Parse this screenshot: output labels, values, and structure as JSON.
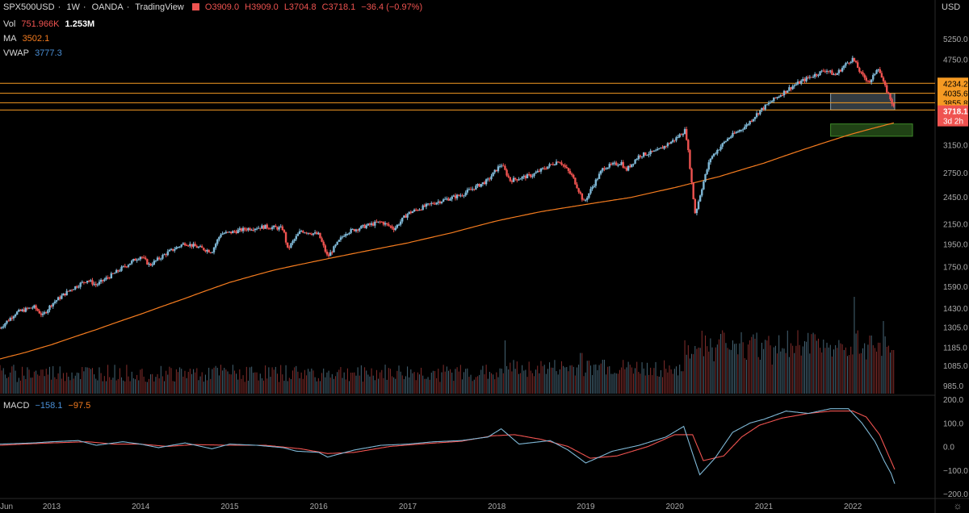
{
  "header": {
    "symbol": "SPX500USD",
    "interval": "1W",
    "exchange": "OANDA",
    "platform": "TradingView",
    "open": "O3909.0",
    "high": "H3909.0",
    "low": "L3704.8",
    "close": "C3718.1",
    "change": "−36.4 (−0.97%)",
    "currency": "USD"
  },
  "indicators": {
    "vol_label": "Vol",
    "vol_value": "751.966K",
    "vol_value2": "1.253M",
    "ma_label": "MA",
    "ma_value": "3502.1",
    "vwap_label": "VWAP",
    "vwap_value": "3777.3",
    "macd_label": "MACD",
    "macd_value": "−158.1",
    "signal_value": "−97.5"
  },
  "colors": {
    "background": "#000000",
    "up_candle": "#7fb8d6",
    "down_candle": "#ef5350",
    "ma_line": "#f57c1f",
    "level_line": "#f59a23",
    "macd_line": "#7fb8d6",
    "signal_line": "#ef5350",
    "zone_gray": "#5b6b78",
    "zone_green": "#2e5e1e"
  },
  "chart_data": {
    "type": "candlestick",
    "price_axis_labels": [
      "5250.0",
      "4750.0",
      "3150.0",
      "2750.0",
      "2450.0",
      "2150.0",
      "1950.0",
      "1750.0",
      "1590.0",
      "1430.0",
      "1305.0",
      "1185.0",
      "1085.0",
      "985.0"
    ],
    "price_axis_values": [
      5250,
      4750,
      3150,
      2750,
      2450,
      2150,
      1950,
      1750,
      1590,
      1430,
      1305,
      1185,
      1085,
      985
    ],
    "price_range": [
      1290,
      5100
    ],
    "scale": "log",
    "macd_axis_labels": [
      "200.0",
      "100.0",
      "0.0",
      "−100.0",
      "−200.0"
    ],
    "macd_axis_values": [
      200,
      100,
      0,
      -100,
      -200
    ],
    "time_labels": [
      "Jun",
      "2013",
      "2014",
      "2015",
      "2016",
      "2017",
      "2018",
      "2019",
      "2020",
      "2021",
      "2022"
    ],
    "time_positions": [
      2012.42,
      2013,
      2014,
      2015,
      2016,
      2017,
      2018,
      2019,
      2020,
      2021,
      2022
    ],
    "time_range": [
      2012.42,
      2022.47
    ],
    "price_path": [
      [
        2012.42,
        1300
      ],
      [
        2012.6,
        1400
      ],
      [
        2012.8,
        1440
      ],
      [
        2012.9,
        1380
      ],
      [
        2013.0,
        1460
      ],
      [
        2013.2,
        1560
      ],
      [
        2013.4,
        1640
      ],
      [
        2013.5,
        1600
      ],
      [
        2013.7,
        1690
      ],
      [
        2013.9,
        1790
      ],
      [
        2014.0,
        1840
      ],
      [
        2014.1,
        1760
      ],
      [
        2014.3,
        1870
      ],
      [
        2014.5,
        1960
      ],
      [
        2014.6,
        1930
      ],
      [
        2014.8,
        1880
      ],
      [
        2014.9,
        2050
      ],
      [
        2015.0,
        2060
      ],
      [
        2015.2,
        2100
      ],
      [
        2015.4,
        2120
      ],
      [
        2015.6,
        2100
      ],
      [
        2015.65,
        1900
      ],
      [
        2015.8,
        2080
      ],
      [
        2016.0,
        2040
      ],
      [
        2016.1,
        1830
      ],
      [
        2016.3,
        2060
      ],
      [
        2016.5,
        2120
      ],
      [
        2016.7,
        2170
      ],
      [
        2016.85,
        2100
      ],
      [
        2017.0,
        2260
      ],
      [
        2017.3,
        2380
      ],
      [
        2017.6,
        2470
      ],
      [
        2017.9,
        2650
      ],
      [
        2018.05,
        2870
      ],
      [
        2018.15,
        2650
      ],
      [
        2018.4,
        2720
      ],
      [
        2018.7,
        2920
      ],
      [
        2018.85,
        2700
      ],
      [
        2018.98,
        2380
      ],
      [
        2019.2,
        2820
      ],
      [
        2019.4,
        2890
      ],
      [
        2019.45,
        2780
      ],
      [
        2019.6,
        2990
      ],
      [
        2019.8,
        3050
      ],
      [
        2020.0,
        3230
      ],
      [
        2020.12,
        3380
      ],
      [
        2020.2,
        2500
      ],
      [
        2020.23,
        2250
      ],
      [
        2020.4,
        2950
      ],
      [
        2020.6,
        3250
      ],
      [
        2020.8,
        3450
      ],
      [
        2020.95,
        3700
      ],
      [
        2021.1,
        3900
      ],
      [
        2021.3,
        4150
      ],
      [
        2021.5,
        4350
      ],
      [
        2021.7,
        4520
      ],
      [
        2021.8,
        4400
      ],
      [
        2021.95,
        4700
      ],
      [
        2022.0,
        4770
      ],
      [
        2022.1,
        4400
      ],
      [
        2022.2,
        4250
      ],
      [
        2022.28,
        4600
      ],
      [
        2022.35,
        4200
      ],
      [
        2022.43,
        3900
      ],
      [
        2022.47,
        3718
      ]
    ],
    "ma_path": [
      [
        2012.42,
        1120
      ],
      [
        2012.7,
        1155
      ],
      [
        2013.0,
        1200
      ],
      [
        2013.5,
        1290
      ],
      [
        2014.0,
        1390
      ],
      [
        2014.5,
        1500
      ],
      [
        2015.0,
        1620
      ],
      [
        2015.5,
        1720
      ],
      [
        2016.0,
        1800
      ],
      [
        2016.5,
        1880
      ],
      [
        2017.0,
        1960
      ],
      [
        2017.5,
        2060
      ],
      [
        2018.0,
        2180
      ],
      [
        2018.5,
        2280
      ],
      [
        2019.0,
        2360
      ],
      [
        2019.5,
        2440
      ],
      [
        2020.0,
        2560
      ],
      [
        2020.5,
        2700
      ],
      [
        2021.0,
        2880
      ],
      [
        2021.5,
        3100
      ],
      [
        2022.0,
        3320
      ],
      [
        2022.47,
        3502
      ]
    ],
    "levels": [
      {
        "label": "4234.2",
        "value": 4234.2
      },
      {
        "label": "4035.6",
        "value": 4035.6
      },
      {
        "label": "3855.8",
        "value": 3855.8
      },
      {
        "label": "3722.6",
        "value": 3722.6
      }
    ],
    "last_price": {
      "label": "3718.1",
      "countdown": "3d 2h",
      "value": 3718.1
    },
    "zones": [
      {
        "type": "gray",
        "x": [
          2021.75,
          2022.47
        ],
        "y": [
          3722.6,
          4035.6
        ]
      },
      {
        "type": "green",
        "x": [
          2021.75,
          2022.67
        ],
        "y": [
          3280,
          3480
        ]
      }
    ],
    "volume_spikes": [
      [
        2018.1,
        0.55
      ],
      [
        2018.95,
        0.42
      ],
      [
        2019.2,
        0.35
      ],
      [
        2020.15,
        0.5
      ],
      [
        2020.65,
        0.55
      ],
      [
        2020.8,
        0.35
      ],
      [
        2021.1,
        0.3
      ],
      [
        2021.9,
        0.45
      ],
      [
        2022.02,
        1.0
      ],
      [
        2022.2,
        0.6
      ],
      [
        2022.35,
        0.75
      ],
      [
        2022.45,
        0.45
      ]
    ],
    "macd_path": [
      [
        2012.42,
        10
      ],
      [
        2012.8,
        15
      ],
      [
        2013.0,
        20
      ],
      [
        2013.3,
        25
      ],
      [
        2013.5,
        5
      ],
      [
        2013.8,
        20
      ],
      [
        2014.0,
        10
      ],
      [
        2014.2,
        -5
      ],
      [
        2014.5,
        15
      ],
      [
        2014.8,
        -10
      ],
      [
        2015.0,
        10
      ],
      [
        2015.3,
        5
      ],
      [
        2015.6,
        -5
      ],
      [
        2015.75,
        -20
      ],
      [
        2016.0,
        -25
      ],
      [
        2016.1,
        -45
      ],
      [
        2016.4,
        -15
      ],
      [
        2016.7,
        5
      ],
      [
        2017.0,
        10
      ],
      [
        2017.3,
        20
      ],
      [
        2017.6,
        25
      ],
      [
        2017.9,
        40
      ],
      [
        2018.05,
        75
      ],
      [
        2018.25,
        10
      ],
      [
        2018.6,
        25
      ],
      [
        2018.8,
        -15
      ],
      [
        2019.0,
        -70
      ],
      [
        2019.3,
        -20
      ],
      [
        2019.6,
        5
      ],
      [
        2019.9,
        40
      ],
      [
        2020.1,
        85
      ],
      [
        2020.2,
        -30
      ],
      [
        2020.28,
        -120
      ],
      [
        2020.45,
        -50
      ],
      [
        2020.65,
        60
      ],
      [
        2020.85,
        100
      ],
      [
        2021.0,
        115
      ],
      [
        2021.25,
        150
      ],
      [
        2021.5,
        140
      ],
      [
        2021.75,
        160
      ],
      [
        2021.95,
        160
      ],
      [
        2022.1,
        100
      ],
      [
        2022.25,
        20
      ],
      [
        2022.35,
        -60
      ],
      [
        2022.43,
        -115
      ],
      [
        2022.47,
        -158
      ]
    ],
    "signal_path": [
      [
        2012.42,
        5
      ],
      [
        2012.8,
        12
      ],
      [
        2013.0,
        15
      ],
      [
        2013.4,
        20
      ],
      [
        2013.7,
        10
      ],
      [
        2014.0,
        10
      ],
      [
        2014.3,
        0
      ],
      [
        2014.6,
        8
      ],
      [
        2015.0,
        5
      ],
      [
        2015.4,
        5
      ],
      [
        2015.8,
        -10
      ],
      [
        2016.1,
        -30
      ],
      [
        2016.4,
        -25
      ],
      [
        2016.8,
        0
      ],
      [
        2017.2,
        12
      ],
      [
        2017.6,
        22
      ],
      [
        2017.95,
        45
      ],
      [
        2018.2,
        50
      ],
      [
        2018.5,
        30
      ],
      [
        2018.8,
        0
      ],
      [
        2019.05,
        -50
      ],
      [
        2019.35,
        -40
      ],
      [
        2019.7,
        0
      ],
      [
        2020.0,
        50
      ],
      [
        2020.2,
        50
      ],
      [
        2020.32,
        -60
      ],
      [
        2020.55,
        -40
      ],
      [
        2020.75,
        40
      ],
      [
        2020.95,
        90
      ],
      [
        2021.2,
        120
      ],
      [
        2021.5,
        140
      ],
      [
        2021.75,
        150
      ],
      [
        2022.0,
        150
      ],
      [
        2022.15,
        125
      ],
      [
        2022.3,
        50
      ],
      [
        2022.47,
        -97.5
      ]
    ]
  }
}
